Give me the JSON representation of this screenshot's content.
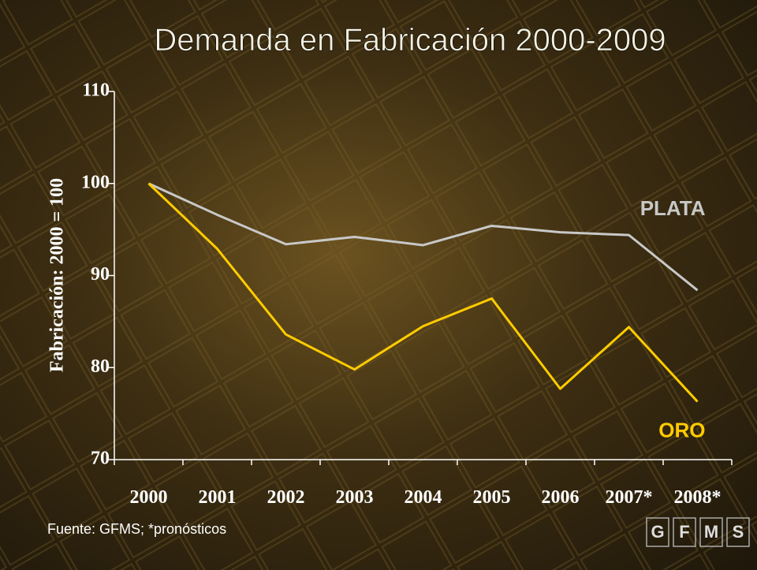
{
  "chart_data": {
    "type": "line",
    "title": "Demanda en Fabricación 2000-2009",
    "y_label": "Fabricación: 2000 = 100",
    "categories": [
      "2000",
      "2001",
      "2002",
      "2003",
      "2004",
      "2005",
      "2006",
      "2007*",
      "2008*"
    ],
    "series": [
      {
        "name": "PLATA",
        "color": "#c8c8c8",
        "values": [
          100,
          96.6,
          93.4,
          94.2,
          93.3,
          95.4,
          94.7,
          94.4,
          88.4
        ]
      },
      {
        "name": "ORO",
        "color": "#ffcc00",
        "values": [
          100,
          92.9,
          83.6,
          79.8,
          84.5,
          87.5,
          77.7,
          84.4,
          76.3
        ]
      }
    ],
    "ylim": [
      70,
      110
    ],
    "yticks": [
      70,
      80,
      90,
      100,
      110
    ],
    "grid": false
  },
  "source": "Fuente: GFMS; *pronósticos",
  "logo": [
    "G",
    "F",
    "M",
    "S"
  ]
}
